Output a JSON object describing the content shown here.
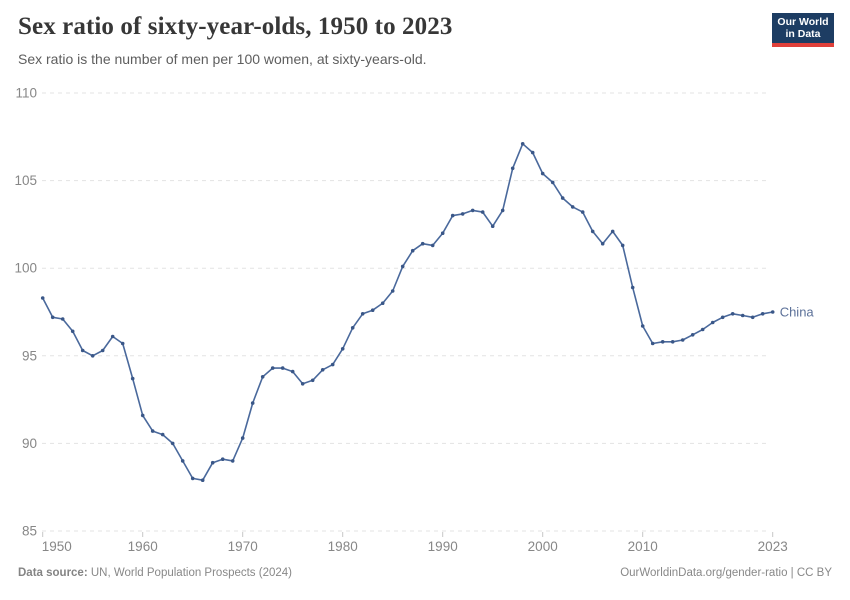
{
  "header": {
    "title": "Sex ratio of sixty-year-olds, 1950 to 2023",
    "subtitle": "Sex ratio is the number of men per 100 women, at sixty-years-old.",
    "logo": {
      "line1": "Our World",
      "line2": "in Data",
      "bg_color": "#1d3d63",
      "accent_color": "#e0403a"
    }
  },
  "footer": {
    "source_label": "Data source:",
    "source_text": " UN, World Population Prospects (2024)",
    "credit": "OurWorldinData.org/gender-ratio | CC BY"
  },
  "chart_data": {
    "type": "line",
    "title": "Sex ratio of sixty-year-olds, 1950 to 2023",
    "subtitle": "Sex ratio is the number of men per 100 women, at sixty-years-old.",
    "xlabel": "",
    "ylabel": "",
    "xlim": [
      1950,
      2023
    ],
    "ylim": [
      85,
      110
    ],
    "x_ticks": [
      1950,
      1960,
      1970,
      1980,
      1990,
      2000,
      2010,
      2023
    ],
    "y_ticks": [
      85,
      90,
      95,
      100,
      105,
      110
    ],
    "grid": "horizontal-dashed",
    "legend_position": "end-of-line-label",
    "years": [
      1950,
      1951,
      1952,
      1953,
      1954,
      1955,
      1956,
      1957,
      1958,
      1959,
      1960,
      1961,
      1962,
      1963,
      1964,
      1965,
      1966,
      1967,
      1968,
      1969,
      1970,
      1971,
      1972,
      1973,
      1974,
      1975,
      1976,
      1977,
      1978,
      1979,
      1980,
      1981,
      1982,
      1983,
      1984,
      1985,
      1986,
      1987,
      1988,
      1989,
      1990,
      1991,
      1992,
      1993,
      1994,
      1995,
      1996,
      1997,
      1998,
      1999,
      2000,
      2001,
      2002,
      2003,
      2004,
      2005,
      2006,
      2007,
      2008,
      2009,
      2010,
      2011,
      2012,
      2013,
      2014,
      2015,
      2016,
      2017,
      2018,
      2019,
      2020,
      2021,
      2022,
      2023
    ],
    "series": [
      {
        "name": "China",
        "color": "#4a699c",
        "point_color": "#3a5788",
        "label_color": "#5c7199",
        "values": [
          98.3,
          97.2,
          97.1,
          96.4,
          95.3,
          95.0,
          95.3,
          96.1,
          95.7,
          93.7,
          91.6,
          90.7,
          90.5,
          90.0,
          89.0,
          88.0,
          87.9,
          88.9,
          89.1,
          89.0,
          90.3,
          92.3,
          93.8,
          94.3,
          94.3,
          94.1,
          93.4,
          93.6,
          94.2,
          94.5,
          95.4,
          96.6,
          97.4,
          97.6,
          98.0,
          98.7,
          100.1,
          101.0,
          101.4,
          101.3,
          102.0,
          103.0,
          103.1,
          103.3,
          103.2,
          102.4,
          103.3,
          105.7,
          107.1,
          106.6,
          105.4,
          104.9,
          104.0,
          103.5,
          103.2,
          102.1,
          101.4,
          102.1,
          101.3,
          98.9,
          96.7,
          95.7,
          95.8,
          95.8,
          95.9,
          96.2,
          96.5,
          96.9,
          97.2,
          97.4,
          97.3,
          97.2,
          97.4,
          97.5
        ]
      }
    ]
  }
}
